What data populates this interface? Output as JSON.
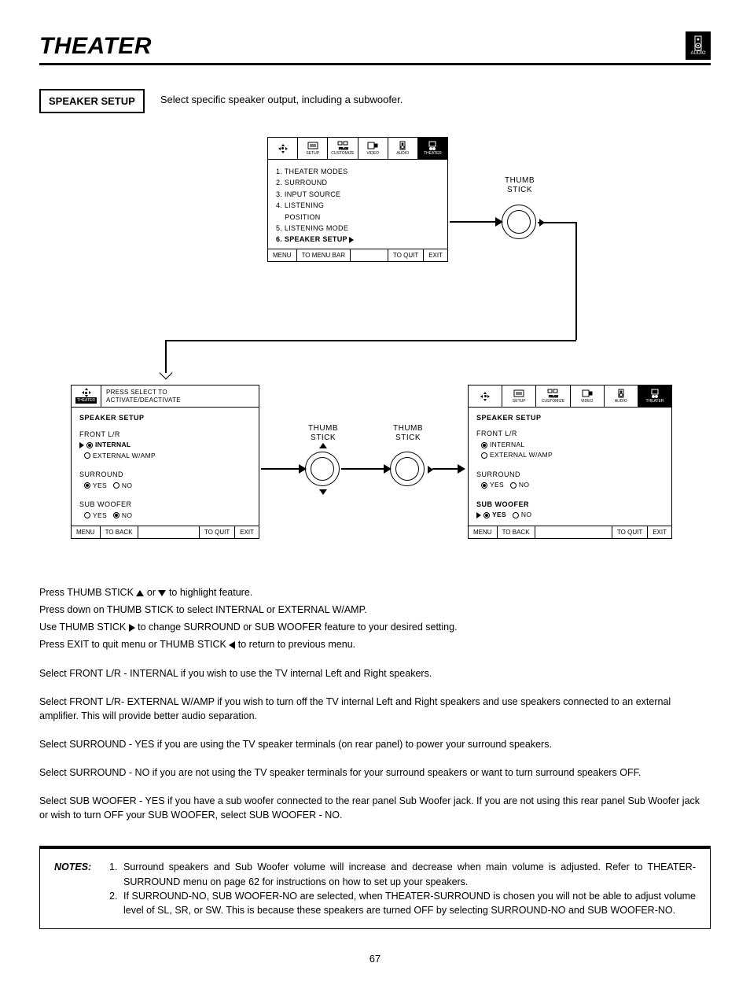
{
  "page_title": "THEATER",
  "audio_label": "AUDIO",
  "section": {
    "label": "SPEAKER SETUP",
    "description": "Select specific speaker output, including a subwoofer."
  },
  "thumb_stick_label": "THUMB\nSTICK",
  "menu_tabs": [
    "SETUP",
    "CUSTOMIZE",
    "VIDEO",
    "AUDIO",
    "THEATER"
  ],
  "top_panel": {
    "items": [
      {
        "text": "1. THEATER MODES",
        "bold": false
      },
      {
        "text": "2. SURROUND",
        "bold": false
      },
      {
        "text": "3. INPUT SOURCE",
        "bold": false
      },
      {
        "text": "4. LISTENING",
        "bold": false
      },
      {
        "text": "    POSITION",
        "bold": false
      },
      {
        "text": "5. LISTENING MODE",
        "bold": false
      },
      {
        "text": "6. SPEAKER SETUP",
        "bold": true,
        "arrow": true
      }
    ],
    "footer": [
      "MENU",
      "TO MENU BAR",
      "TO QUIT",
      "EXIT"
    ]
  },
  "left_panel": {
    "hint": "PRESS SELECT TO\nACTIVATE/DEACTIVATE",
    "heading": "SPEAKER SETUP",
    "front_label": "FRONT L/R",
    "front_options": [
      {
        "label": "INTERNAL",
        "selected": true,
        "bold": true,
        "pointer": true
      },
      {
        "label": "EXTERNAL W/AMP",
        "selected": false
      }
    ],
    "surround_label": "SURROUND",
    "surround_options": [
      {
        "label": "YES",
        "selected": true
      },
      {
        "label": "NO",
        "selected": false
      }
    ],
    "sub_label": "SUB WOOFER",
    "sub_options": [
      {
        "label": "YES",
        "selected": false
      },
      {
        "label": "NO",
        "selected": true
      }
    ],
    "footer": [
      "MENU",
      "TO BACK",
      "TO QUIT",
      "EXIT"
    ]
  },
  "right_panel": {
    "heading": "SPEAKER SETUP",
    "front_label": "FRONT L/R",
    "front_options": [
      {
        "label": "INTERNAL",
        "selected": true
      },
      {
        "label": "EXTERNAL W/AMP",
        "selected": false
      }
    ],
    "surround_label": "SURROUND",
    "surround_options": [
      {
        "label": "YES",
        "selected": true
      },
      {
        "label": "NO",
        "selected": false
      }
    ],
    "sub_label": "SUB WOOFER",
    "sub_bold": true,
    "sub_options": [
      {
        "label": "YES",
        "selected": true,
        "bold": true,
        "pointer": true
      },
      {
        "label": "NO",
        "selected": false
      }
    ],
    "footer": [
      "MENU",
      "TO BACK",
      "TO QUIT",
      "EXIT"
    ]
  },
  "instructions_top": [
    "Press THUMB STICK ▲ or ▼ to highlight feature.",
    "Press down on THUMB STICK to select INTERNAL or EXTERNAL W/AMP.",
    "Use THUMB STICK ▶ to change SURROUND or SUB WOOFER feature to your desired setting.",
    "Press EXIT to quit menu or THUMB STICK ◀ to return to previous menu."
  ],
  "instructions_body": [
    "Select FRONT L/R - INTERNAL if you wish to use the TV internal Left and Right speakers.",
    "Select FRONT L/R- EXTERNAL W/AMP if you wish to turn off the TV internal Left and Right speakers and use speakers connected to an external amplifier.  This will provide better audio separation.",
    "Select SURROUND - YES if you are using the TV speaker terminals (on rear panel) to power your surround speakers.",
    "Select SURROUND - NO if you are not using the TV speaker terminals for your surround speakers or want to turn surround speakers OFF.",
    "Select SUB WOOFER - YES if you have a sub woofer connected to the rear panel Sub Woofer jack.  If you are not using this rear panel Sub Woofer jack or wish to turn OFF your SUB WOOFER, select SUB WOOFER - NO."
  ],
  "notes_label": "NOTES:",
  "notes": [
    "Surround speakers and Sub Woofer volume will increase and decrease when main volume is adjusted.  Refer to THEATER-SURROUND menu on page 62 for instructions on how to set up your speakers.",
    "If SURROUND-NO, SUB WOOFER-NO are selected, when THEATER-SURROUND is chosen you will not be able to adjust volume level of SL, SR, or SW.  This is because these speakers are turned OFF by selecting SURROUND-NO and SUB WOOFER-NO."
  ],
  "page_number": "67"
}
